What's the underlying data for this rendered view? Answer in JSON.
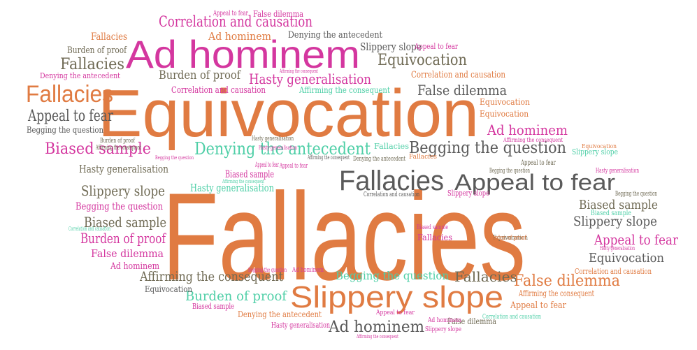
{
  "palette": {
    "orange": "#e07b42",
    "magenta": "#d4379f",
    "teal": "#4fcfa7",
    "gray": "#5a5a5a",
    "olive": "#6f6a54",
    "pink": "#e8559a"
  },
  "words": [
    {
      "id": "w-fallacies-xl",
      "text": "Fallacies",
      "color": "orange"
    },
    {
      "id": "w-equivocation-xl",
      "text": "Equivocation",
      "color": "orange"
    },
    {
      "id": "w-ad-hominem-l",
      "text": "Ad hominem",
      "color": "magenta"
    },
    {
      "id": "w-slippery-slope-l",
      "text": "Slippery slope",
      "color": "orange"
    },
    {
      "id": "w-fallacies-l",
      "text": "Fallacies",
      "color": "gray"
    },
    {
      "id": "w-appeal-fear-l",
      "text": "Appeal to fear",
      "color": "gray"
    },
    {
      "id": "w-fallacies-m1",
      "text": "Fallacies",
      "color": "orange"
    },
    {
      "id": "w-corr-top",
      "text": "Correlation and causation",
      "color": "magenta"
    },
    {
      "id": "w-equiv-m",
      "text": "Equivocation",
      "color": "olive"
    },
    {
      "id": "w-denying-m",
      "text": "Denying the antecedent",
      "color": "teal"
    },
    {
      "id": "w-begging-m",
      "text": "Begging the question",
      "color": "gray"
    },
    {
      "id": "w-hasty-m",
      "text": "Hasty generalisation",
      "color": "magenta"
    },
    {
      "id": "w-false-dil-m",
      "text": "False dilemma",
      "color": "gray"
    },
    {
      "id": "w-biased-m",
      "text": "Biased sample",
      "color": "magenta"
    },
    {
      "id": "w-appeal-left",
      "text": "Appeal to fear",
      "color": "gray"
    },
    {
      "id": "w-adhom-right",
      "text": "Ad hominem",
      "color": "magenta"
    },
    {
      "id": "w-burden-m1",
      "text": "Burden of proof",
      "color": "olive"
    },
    {
      "id": "w-fallacies-m2",
      "text": "Fallacies",
      "color": "olive"
    },
    {
      "id": "w-biased-l2",
      "text": "Biased sample",
      "color": "olive"
    },
    {
      "id": "w-slippery-left",
      "text": "Slippery slope",
      "color": "olive"
    },
    {
      "id": "w-burden-left",
      "text": "Burden of proof",
      "color": "magenta"
    },
    {
      "id": "w-appeal-right",
      "text": "Appeal to fear",
      "color": "magenta"
    },
    {
      "id": "w-biased-right",
      "text": "Biased sample",
      "color": "olive"
    },
    {
      "id": "w-slippery-right",
      "text": "Slippery slope",
      "color": "gray"
    },
    {
      "id": "w-equiv-right",
      "text": "Equivocation",
      "color": "gray"
    },
    {
      "id": "w-affirm-bottom",
      "text": "Affirming the consequent",
      "color": "olive"
    },
    {
      "id": "w-burden-bottom",
      "text": "Burden of proof",
      "color": "teal"
    },
    {
      "id": "w-begging-bottom",
      "text": "Begging the question",
      "color": "teal"
    },
    {
      "id": "w-fallacies-bottom",
      "text": "Fallacies",
      "color": "olive"
    },
    {
      "id": "w-false-dil-bottom",
      "text": "False dilemma",
      "color": "orange"
    },
    {
      "id": "w-adhom-bottom",
      "text": "Ad hominem",
      "color": "gray"
    },
    {
      "id": "w-adhom-top",
      "text": "Ad hominem",
      "color": "orange"
    },
    {
      "id": "w-denying-top",
      "text": "Denying the antecedent",
      "color": "gray"
    },
    {
      "id": "w-slippery-top",
      "text": "Slippery slope",
      "color": "gray"
    },
    {
      "id": "w-burden-top",
      "text": "Burden of proof",
      "color": "olive"
    },
    {
      "id": "w-fallacies-tl",
      "text": "Fallacies",
      "color": "orange"
    },
    {
      "id": "w-burden-mid",
      "text": "Burden of proof",
      "color": "olive"
    },
    {
      "id": "w-corr-mid",
      "text": "Correlation and causation",
      "color": "magenta"
    },
    {
      "id": "w-affirm-mid",
      "text": "Affirming the consequent",
      "color": "teal"
    },
    {
      "id": "w-corr-right",
      "text": "Correlation and causation",
      "color": "orange"
    },
    {
      "id": "w-hasty-left",
      "text": "Hasty generalisation",
      "color": "olive"
    },
    {
      "id": "w-hasty-teal",
      "text": "Hasty generalisation",
      "color": "teal"
    },
    {
      "id": "w-begging-pink",
      "text": "Begging the question",
      "color": "magenta"
    },
    {
      "id": "w-false-dil-pink",
      "text": "False dilemma",
      "color": "magenta"
    },
    {
      "id": "w-adhom-small",
      "text": "Ad hominem",
      "color": "magenta"
    },
    {
      "id": "w-equiv-small",
      "text": "Equivocation",
      "color": "gray"
    },
    {
      "id": "w-biased-small",
      "text": "Biased sample",
      "color": "magenta"
    },
    {
      "id": "w-denying-bottom",
      "text": "Denying the antecedent",
      "color": "orange"
    },
    {
      "id": "w-hasty-bottom",
      "text": "Hasty generalisation",
      "color": "magenta"
    },
    {
      "id": "w-biased-center",
      "text": "Biased sample",
      "color": "magenta"
    },
    {
      "id": "w-affirm-right",
      "text": "Affirming the consequent",
      "color": "orange"
    },
    {
      "id": "w-appeal-right2",
      "text": "Appeal to fear",
      "color": "orange"
    },
    {
      "id": "w-corr-right2",
      "text": "Correlation and causation",
      "color": "orange"
    },
    {
      "id": "w-equiv-small2",
      "text": "Equivocation",
      "color": "orange"
    },
    {
      "id": "w-equiv-small3",
      "text": "Equivocation",
      "color": "orange"
    },
    {
      "id": "w-false-dil-small",
      "text": "False dilemma",
      "color": "olive"
    },
    {
      "id": "w-biased-tiny",
      "text": "Biased sample",
      "color": "teal"
    },
    {
      "id": "w-slippery-tiny",
      "text": "Slippery slope",
      "color": "magenta"
    },
    {
      "id": "w-begging-tiny",
      "text": "Begging the question",
      "color": "olive"
    },
    {
      "id": "w-appeal-tiny",
      "text": "Appeal to fear",
      "color": "olive"
    },
    {
      "id": "w-begging-small",
      "text": "Begging the question",
      "color": "olive"
    },
    {
      "id": "w-hasty-tiny",
      "text": "Hasty generalisation",
      "color": "magenta"
    },
    {
      "id": "w-corr-small",
      "text": "Correlation and causation",
      "color": "gray"
    },
    {
      "id": "w-burden-tiny",
      "text": "Burden of proof",
      "color": "olive"
    },
    {
      "id": "w-affirm-tiny",
      "text": "Affirming the consequent",
      "color": "olive"
    },
    {
      "id": "w-appeal-top",
      "text": "Appeal to fear",
      "color": "magenta"
    },
    {
      "id": "w-false-dil-top",
      "text": "False dilemma",
      "color": "magenta"
    },
    {
      "id": "w-appeal-fear-s",
      "text": "Appeal to fear",
      "color": "magenta"
    },
    {
      "id": "w-slippery-s",
      "text": "Slippery slope",
      "color": "teal"
    },
    {
      "id": "w-fallacies-teal",
      "text": "Fallacies",
      "color": "teal"
    },
    {
      "id": "w-fallacies-pink",
      "text": "Fallacies",
      "color": "magenta"
    },
    {
      "id": "w-equiv-left",
      "text": "Equivocation",
      "color": "olive"
    },
    {
      "id": "w-appeal-bottom",
      "text": "Appeal to fear",
      "color": "magenta"
    },
    {
      "id": "w-corr-bottom",
      "text": "Correlation and causation",
      "color": "teal"
    },
    {
      "id": "w-adhom-tiny",
      "text": "Ad hominem",
      "color": "magenta"
    },
    {
      "id": "w-slippery-bottom",
      "text": "Slippery slope",
      "color": "magenta"
    },
    {
      "id": "w-affirm-bottom-tiny",
      "text": "Affirming the consequent",
      "color": "magenta"
    },
    {
      "id": "w-begging-tiny2",
      "text": "Begging the question",
      "color": "magenta"
    },
    {
      "id": "w-adhom-tiny2",
      "text": "Ad hominem",
      "color": "magenta"
    },
    {
      "id": "w-biased-bottom-left",
      "text": "Biased sample",
      "color": "magenta"
    },
    {
      "id": "w-hasty-tiny2",
      "text": "Hasty generalisation",
      "color": "magenta"
    },
    {
      "id": "w-begging-left",
      "text": "Begging the question",
      "color": "gray"
    },
    {
      "id": "w-corr-left",
      "text": "Correlation and causation",
      "color": "teal"
    },
    {
      "id": "w-denying-left",
      "text": "Denying the antecedent",
      "color": "magenta"
    },
    {
      "id": "w-affirm-left",
      "text": "Affirming the consequent",
      "color": "gray"
    },
    {
      "id": "w-hasty-top",
      "text": "Hasty generalisation",
      "color": "olive"
    },
    {
      "id": "w-denying-tiny",
      "text": "Denying the antecedent",
      "color": "olive"
    },
    {
      "id": "w-affirm-top",
      "text": "Affirming the consequent",
      "color": "magenta"
    },
    {
      "id": "w-appeal-top2",
      "text": "Appeal to fear",
      "color": "magenta"
    },
    {
      "id": "w-burden-small",
      "text": "Burden of proof",
      "color": "orange"
    },
    {
      "id": "w-fallacies-small",
      "text": "Fallacies",
      "color": "orange"
    },
    {
      "id": "w-appeal-fear-mid",
      "text": "Appeal to fear",
      "color": "magenta"
    },
    {
      "id": "w-affirm-mid-tiny",
      "text": "Affirming the consequent",
      "color": "teal"
    },
    {
      "id": "w-hasty-mid",
      "text": "Hasty generalisation",
      "color": "magenta"
    },
    {
      "id": "w-equiv-top-r",
      "text": "Equivocation",
      "color": "orange"
    },
    {
      "id": "w-begging-mid-tiny",
      "text": "Begging the question",
      "color": "magenta"
    },
    {
      "id": "w-affirm-bot",
      "text": "Affirming the consequent",
      "color": "magenta"
    }
  ]
}
